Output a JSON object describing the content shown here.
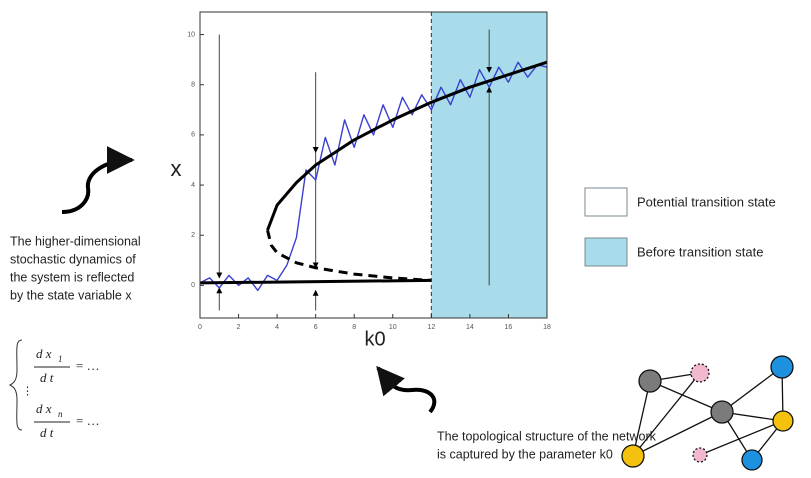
{
  "chart_data": {
    "type": "line",
    "x_label": "k0",
    "y_label": "x",
    "xlim": [
      0,
      18
    ],
    "ylim": [
      -1.3,
      10.9
    ],
    "xticks": [
      0,
      2,
      4,
      6,
      8,
      10,
      12,
      14,
      16,
      18
    ],
    "yticks": [
      0,
      2,
      4,
      6,
      8,
      10
    ],
    "shaded_region": {
      "x": [
        12,
        18
      ],
      "color": "#a8dcea"
    },
    "series": [
      {
        "color": "#3a3fd0",
        "width": 1.4,
        "dash": false,
        "x": [
          0,
          0.5,
          1,
          1.5,
          2,
          2.5,
          3,
          3.5,
          4,
          4.5,
          5,
          5.5,
          6,
          6.5,
          7,
          7.5,
          8,
          8.5,
          9,
          9.5,
          10,
          10.5,
          11,
          11.5,
          12,
          12.5,
          13,
          13.5,
          14,
          14.5,
          15,
          15.5,
          16,
          16.5,
          17,
          17.5,
          18
        ],
        "values": [
          0.1,
          0.3,
          -0.1,
          0.4,
          0.0,
          0.3,
          -0.2,
          0.4,
          0.2,
          0.8,
          1.9,
          4.6,
          4.2,
          5.9,
          4.8,
          6.6,
          5.5,
          6.8,
          6.0,
          7.2,
          6.3,
          7.5,
          6.8,
          7.6,
          7.0,
          7.9,
          7.2,
          8.2,
          7.5,
          8.6,
          7.9,
          8.7,
          8.1,
          8.9,
          8.3,
          8.8,
          8.7
        ]
      },
      {
        "color": "#000000",
        "width": 3,
        "dash": false,
        "x": [
          3.5,
          4,
          5,
          6,
          7,
          8,
          10,
          12,
          14,
          16,
          18
        ],
        "values": [
          2.2,
          3.2,
          4.1,
          4.8,
          5.3,
          5.8,
          6.6,
          7.3,
          7.9,
          8.4,
          8.9
        ]
      },
      {
        "color": "#000000",
        "width": 3,
        "dash": true,
        "x": [
          3.5,
          3.7,
          4,
          5,
          6,
          8,
          10,
          12
        ],
        "values": [
          2.2,
          1.6,
          1.3,
          0.9,
          0.7,
          0.45,
          0.3,
          0.2
        ]
      },
      {
        "color": "#000000",
        "width": 3,
        "dash": false,
        "x": [
          0,
          12
        ],
        "values": [
          0.1,
          0.2
        ]
      }
    ],
    "arrows": [
      {
        "x": 1,
        "from": 10,
        "to": 0.3
      },
      {
        "x": 1,
        "from": -1,
        "to": -0.1
      },
      {
        "x": 6,
        "from": 8.5,
        "to": 5.3
      },
      {
        "x": 6,
        "from": 5.3,
        "to": 0.7
      },
      {
        "x": 6,
        "from": -1,
        "to": -0.2
      },
      {
        "x": 15,
        "from": 10.2,
        "to": 8.5
      },
      {
        "x": 15,
        "from": 0,
        "to": 7.9
      }
    ]
  },
  "legend": [
    {
      "label": "Potential transition state",
      "color": "#ffffff"
    },
    {
      "label": "Before transition state",
      "color": "#a8dcea"
    }
  ],
  "annotations": {
    "left": [
      "The higher-dimensional",
      "stochastic dynamics of",
      "the system is reflected",
      "by the state variable x"
    ],
    "bottom": [
      "The topological structure of the network",
      "is captured by the parameter k0"
    ]
  },
  "equations": {
    "rows": [
      {
        "num": "d x",
        "sub": "1",
        "den": "d t",
        "rhs": "= …"
      },
      {
        "num": "d x",
        "sub": "n",
        "den": "d t",
        "rhs": "= …"
      }
    ],
    "vdots": "⋮"
  }
}
